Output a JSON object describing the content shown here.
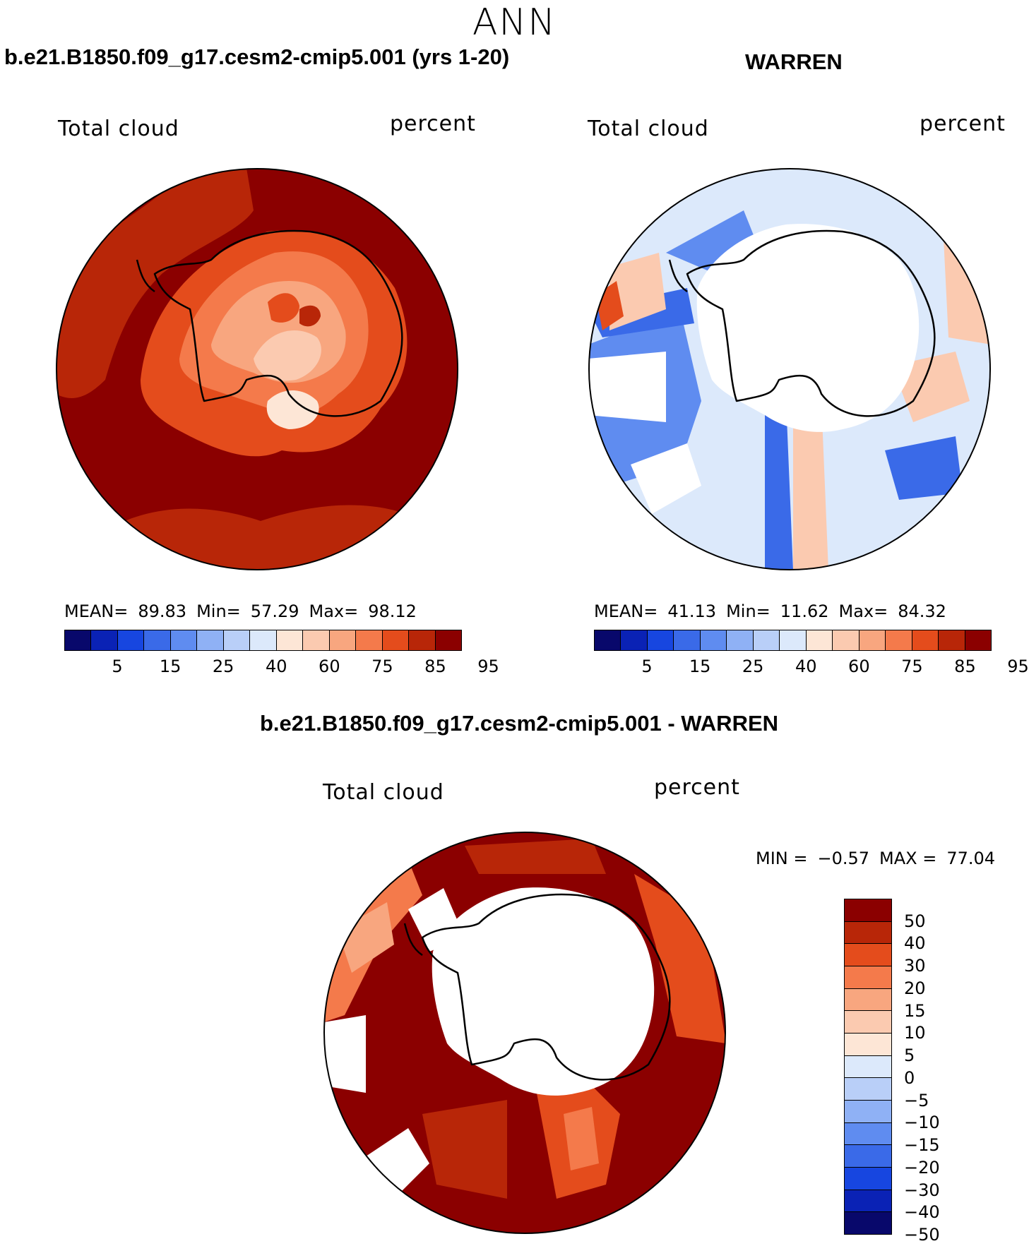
{
  "season": "ANN",
  "panels": {
    "model": {
      "title": "b.e21.B1850.f09_g17.cesm2-cmip5.001 (yrs 1-20)",
      "field": "Total cloud",
      "units": "percent",
      "stats": {
        "mean_label": "MEAN=",
        "mean": "89.83",
        "min_label": "Min=",
        "min": "57.29",
        "max_label": "Max=",
        "max": "98.12"
      },
      "colorbar_ticks": [
        "5",
        "15",
        "25",
        "40",
        "60",
        "75",
        "85",
        "95"
      ]
    },
    "obs": {
      "title": "WARREN",
      "field": "Total cloud",
      "units": "percent",
      "stats": {
        "mean_label": "MEAN=",
        "mean": "41.13",
        "min_label": "Min=",
        "min": "11.62",
        "max_label": "Max=",
        "max": "84.32"
      },
      "colorbar_ticks": [
        "5",
        "15",
        "25",
        "40",
        "60",
        "75",
        "85",
        "95"
      ]
    },
    "diff": {
      "title": "b.e21.B1850.f09_g17.cesm2-cmip5.001 - WARREN",
      "field": "Total cloud",
      "units": "percent",
      "stats": {
        "min_label": "MIN =",
        "min": "−0.57",
        "max_label": "MAX =",
        "max": "77.04"
      },
      "colorbar_ticks": [
        "50",
        "40",
        "30",
        "20",
        "15",
        "10",
        "5",
        "0",
        "−5",
        "−10",
        "−15",
        "−20",
        "−30",
        "−40",
        "−50"
      ]
    }
  },
  "colors": {
    "seq_scale": [
      "#08086b",
      "#0a22b5",
      "#1746e0",
      "#3a6ae8",
      "#5f8cf0",
      "#8fb1f5",
      "#b9cff8",
      "#dce9fb",
      "#fde6d6",
      "#fbcab0",
      "#f8a67f",
      "#f47a4b",
      "#e44c1c",
      "#b82608",
      "#8b0000"
    ],
    "div_scale": [
      "#8b0000",
      "#b82608",
      "#e44c1c",
      "#f47a4b",
      "#f8a67f",
      "#fbcab0",
      "#fde6d6",
      "#dce9fb",
      "#b9cff8",
      "#8fb1f5",
      "#5f8cf0",
      "#3a6ae8",
      "#1746e0",
      "#0a22b5",
      "#08086b"
    ]
  }
}
